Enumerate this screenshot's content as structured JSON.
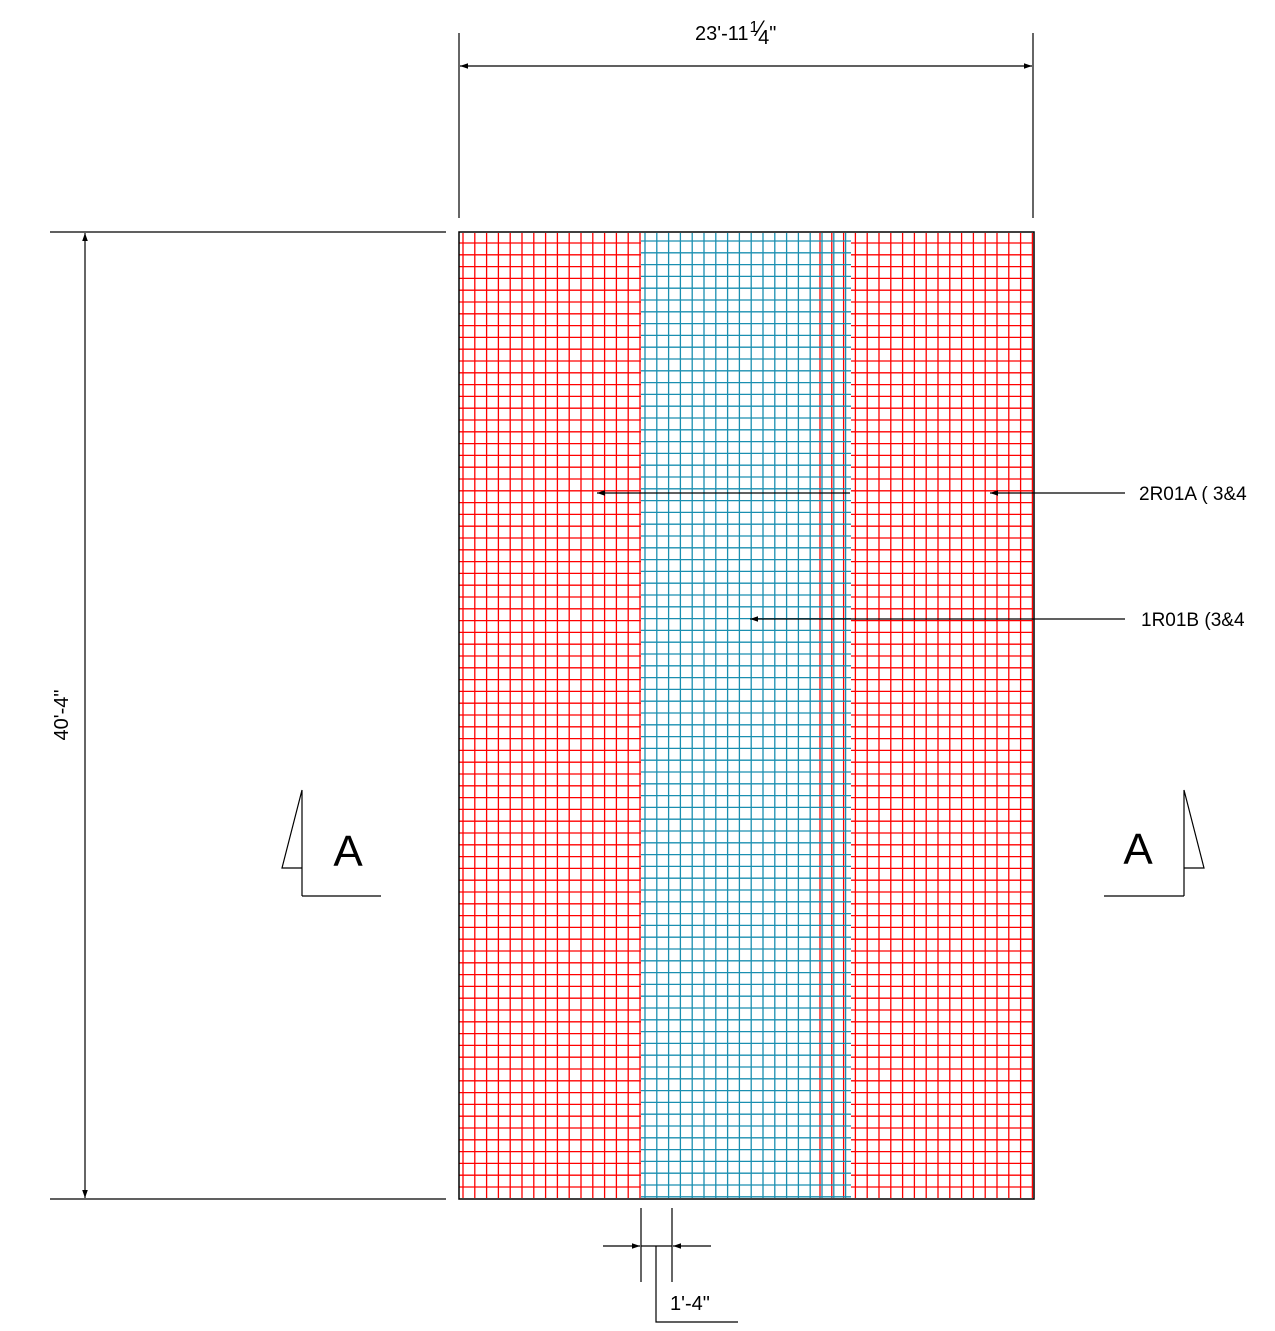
{
  "dimensions": {
    "width_whole": "23'-11",
    "width_num": "1",
    "width_den": "4",
    "width_inch": "\"",
    "height": "40'-4\"",
    "overlap": "1'-4\""
  },
  "callouts": {
    "top_bars": "2R01A ( 3&4",
    "bottom_bars": "1R01B (3&4"
  },
  "section_marks": {
    "left": "A",
    "right": "A"
  },
  "colors": {
    "outer_mesh": "#ff0000",
    "center_mesh": "#1a8fb0",
    "lines": "#000000",
    "background": "#ffffff"
  }
}
